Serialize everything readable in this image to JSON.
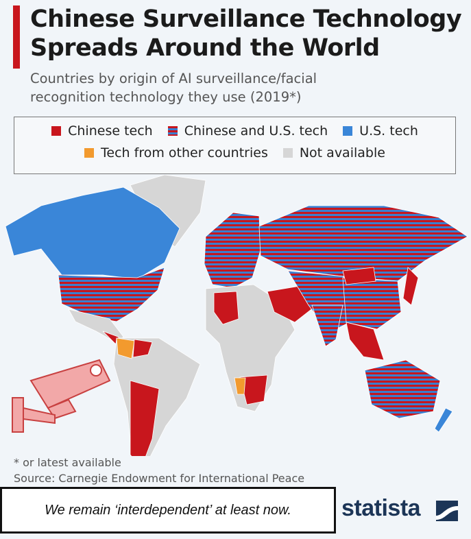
{
  "header": {
    "title_lines": [
      "Chinese Surveillance Technology",
      "Spreads Around the World"
    ],
    "subtitle_lines": [
      "Countries by origin of AI surveillance/facial",
      "recognition technology they use (2019*)"
    ]
  },
  "legend": {
    "items": [
      {
        "label": "Chinese tech",
        "color": "#c8161d"
      },
      {
        "label": "Chinese and U.S. tech",
        "color": "#c8161d",
        "stripe_color": "#3a7fd0"
      },
      {
        "label": "U.S. tech",
        "color": "#3a86d8"
      },
      {
        "label": "Tech from other countries",
        "color": "#f29a2e"
      },
      {
        "label": "Not available",
        "color": "#d6d6d6"
      }
    ]
  },
  "footer": {
    "note": "* or latest available",
    "source": "Source: Carnegie Endowment for International Peace"
  },
  "caption": "We remain ‘interdependent’ at least now.",
  "logo": "statista"
}
